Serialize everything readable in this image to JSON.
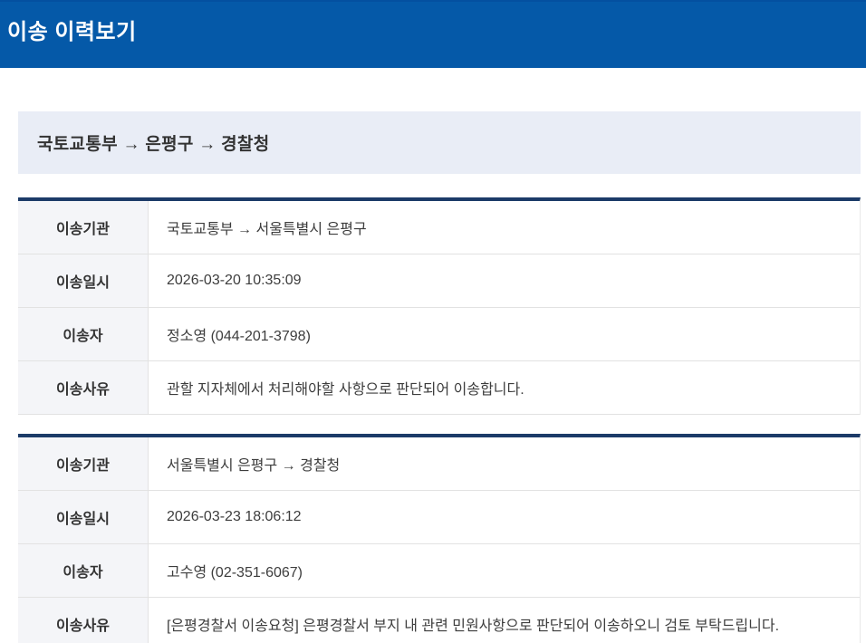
{
  "header": {
    "title": "이송 이력보기"
  },
  "summary": {
    "path": "국토교통부 → 은평구 → 경찰청"
  },
  "tables": [
    {
      "rows": [
        {
          "label": "이송기관",
          "value": "국토교통부 → 서울특별시 은평구"
        },
        {
          "label": "이송일시",
          "value": "2026-03-20 10:35:09"
        },
        {
          "label": "이송자",
          "value": "정소영 (044-201-3798)"
        },
        {
          "label": "이송사유",
          "value": "관할 지자체에서 처리해야할 사항으로 판단되어 이송합니다."
        }
      ]
    },
    {
      "rows": [
        {
          "label": "이송기관",
          "value": "서울특별시 은평구 → 경찰청"
        },
        {
          "label": "이송일시",
          "value": "2026-03-23 18:06:12"
        },
        {
          "label": "이송자",
          "value": "고수영 (02-351-6067)"
        },
        {
          "label": "이송사유",
          "value": "[은평경찰서 이송요청] 은평경찰서 부지 내 관련 민원사항으로 판단되어 이송하오니 검토 부탁드립니다."
        }
      ]
    }
  ],
  "colors": {
    "header_bg": "#0559a8",
    "table_top_border": "#1c3b68",
    "summary_bg": "#e9edf6",
    "label_bg": "#f4f5f8",
    "text_dark": "#333333"
  }
}
